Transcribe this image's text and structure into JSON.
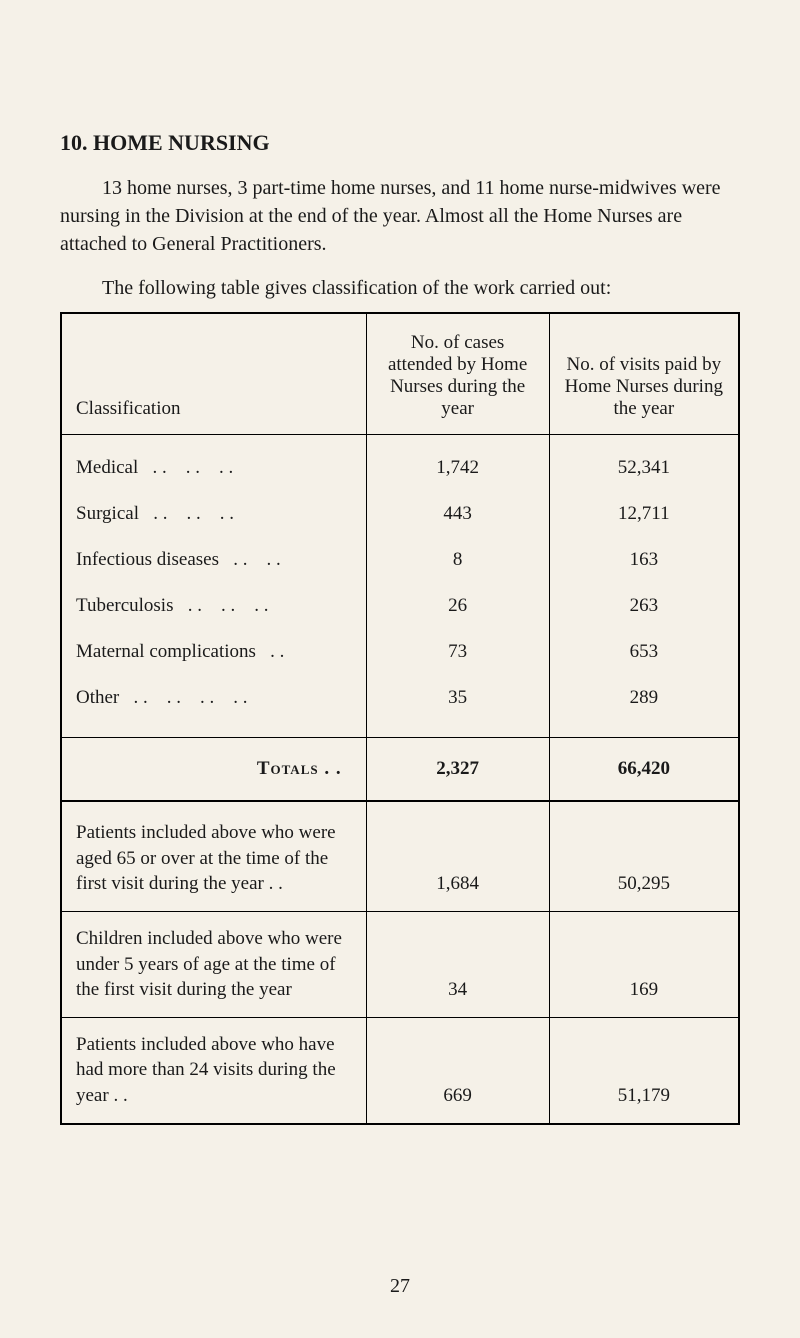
{
  "heading": "10. HOME NURSING",
  "intro": "13 home nurses, 3 part-time home nurses, and 11 home nurse-midwives were nursing in the Division at the end of the year. Almost all the Home Nurses are attached to General Practitioners.",
  "tableIntro": "The following table gives classification of the work carried out:",
  "columns": {
    "classification": "Classification",
    "cases": "No. of cases attended by Home Nurses during the year",
    "visits": "No. of visits paid by Home Nurses during the year"
  },
  "rows": [
    {
      "label": "Medical",
      "cases": "1,742",
      "visits": "52,341"
    },
    {
      "label": "Surgical",
      "cases": "443",
      "visits": "12,711"
    },
    {
      "label": "Infectious diseases",
      "cases": "8",
      "visits": "163"
    },
    {
      "label": "Tuberculosis",
      "cases": "26",
      "visits": "263"
    },
    {
      "label": "Maternal complications",
      "cases": "73",
      "visits": "653"
    },
    {
      "label": "Other",
      "cases": "35",
      "visits": "289"
    }
  ],
  "totals": {
    "label": "Totals  . .",
    "cases": "2,327",
    "visits": "66,420"
  },
  "subrows": [
    {
      "label": "Patients included above who were aged 65 or over at the time of the first visit during the year . .",
      "cases": "1,684",
      "visits": "50,295"
    },
    {
      "label": "Children included above who were under 5 years of age at the time of the first visit during the year",
      "cases": "34",
      "visits": "169"
    },
    {
      "label": "Patients included above who have had more than 24 visits during the year . .",
      "cases": "669",
      "visits": "51,179"
    }
  ],
  "pageNumber": "27",
  "layout": {
    "background_color": "#f5f1e8",
    "text_color": "#1a1a1a",
    "border_color": "#000000",
    "body_fontsize": 20,
    "heading_fontsize": 22,
    "table_fontsize": 19,
    "outer_border_width": 2.5,
    "inner_border_width": 1
  }
}
